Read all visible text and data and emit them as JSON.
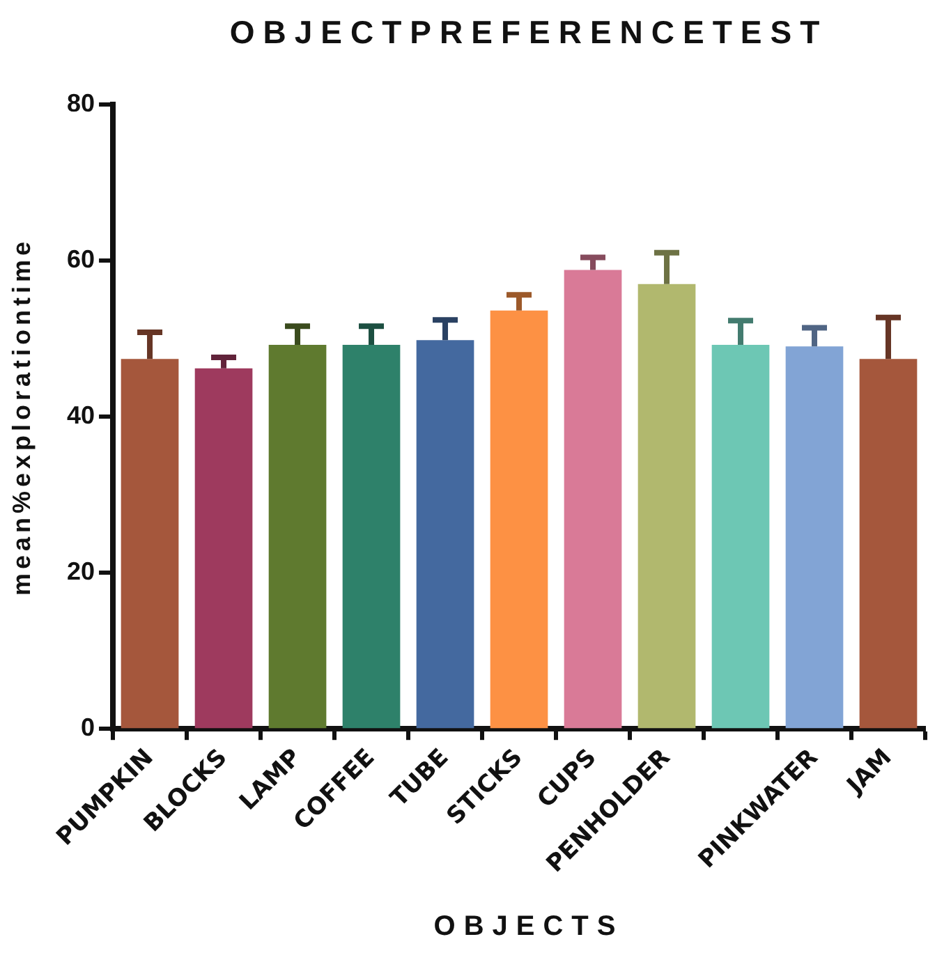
{
  "chart_data": {
    "type": "bar",
    "title": "OBJECTPREFERENCETEST",
    "xlabel": "OBJECTS",
    "ylabel": "mean%explorationtime",
    "categories": [
      "PUMPKIN",
      "BLOCKS",
      "LAMP",
      "COFFEE",
      "TUBE",
      "STICKS",
      "CUPS",
      "PENHOLDER",
      null,
      "PINKWATER",
      "JAM"
    ],
    "values": [
      47.4,
      46.2,
      49.2,
      49.2,
      49.8,
      53.6,
      58.8,
      57.0,
      49.2,
      49.0,
      47.4
    ],
    "errors": [
      [
        47.4,
        50.8
      ],
      [
        46.2,
        47.6
      ],
      [
        49.2,
        51.6
      ],
      [
        49.2,
        51.6
      ],
      [
        49.8,
        52.4
      ],
      [
        53.6,
        55.6
      ],
      [
        58.8,
        60.4
      ],
      [
        57.0,
        61.0
      ],
      [
        49.2,
        52.3
      ],
      [
        49.0,
        51.4
      ],
      [
        47.4,
        52.7
      ]
    ],
    "colors": [
      "#a5573c",
      "#9e3a5e",
      "#5f7a2f",
      "#2e816a",
      "#44699f",
      "#fd9144",
      "#d97a97",
      "#b1b86e",
      "#6dc7b4",
      "#82a4d5",
      "#a5573c"
    ],
    "ylim": [
      0,
      80
    ],
    "yticks": [
      0,
      20,
      40,
      60,
      80
    ],
    "grid": false,
    "legend": false
  }
}
